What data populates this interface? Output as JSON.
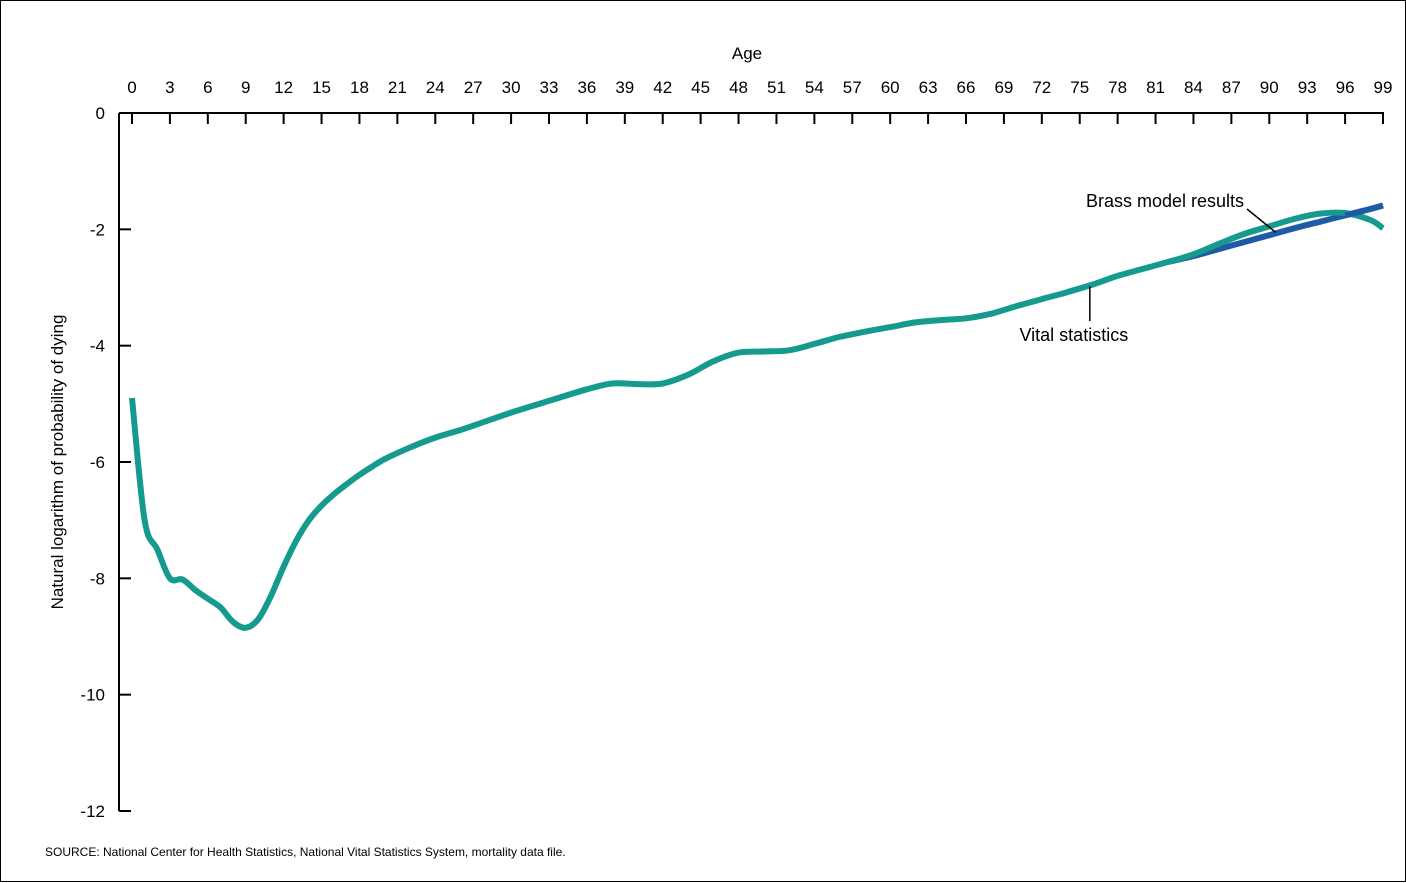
{
  "chart_data": {
    "type": "line",
    "xlabel": "Age",
    "ylabel": "Natural logarithm of probability of dying",
    "xlim": [
      0,
      99
    ],
    "ylim": [
      -12,
      0
    ],
    "x_ticks": [
      0,
      3,
      6,
      9,
      12,
      15,
      18,
      21,
      24,
      27,
      30,
      33,
      36,
      39,
      42,
      45,
      48,
      51,
      54,
      57,
      60,
      63,
      66,
      69,
      72,
      75,
      78,
      81,
      84,
      87,
      90,
      93,
      96,
      99
    ],
    "y_ticks": [
      0,
      -2,
      -4,
      -6,
      -8,
      -10,
      -12
    ],
    "x_axis_position": "top",
    "grid": false,
    "series": [
      {
        "name": "Vital statistics",
        "color": "#159a8e",
        "x": [
          0,
          1,
          2,
          3,
          4,
          5,
          6,
          7,
          8,
          9,
          10,
          11,
          12,
          13,
          14,
          15,
          16,
          17,
          18,
          19,
          20,
          22,
          24,
          26,
          28,
          30,
          33,
          36,
          38,
          40,
          42,
          44,
          46,
          48,
          50,
          52,
          54,
          56,
          58,
          60,
          62,
          64,
          66,
          68,
          70,
          72,
          74,
          76,
          78,
          80,
          82,
          84,
          86,
          88,
          90,
          92,
          94,
          96,
          98,
          99
        ],
        "y": [
          -4.9,
          -7.0,
          -7.5,
          -8.0,
          -8.02,
          -8.2,
          -8.35,
          -8.5,
          -8.75,
          -8.85,
          -8.7,
          -8.3,
          -7.8,
          -7.35,
          -7.0,
          -6.75,
          -6.55,
          -6.38,
          -6.22,
          -6.08,
          -5.95,
          -5.75,
          -5.58,
          -5.45,
          -5.3,
          -5.15,
          -4.95,
          -4.75,
          -4.65,
          -4.66,
          -4.65,
          -4.5,
          -4.27,
          -4.12,
          -4.1,
          -4.08,
          -3.97,
          -3.85,
          -3.76,
          -3.68,
          -3.6,
          -3.56,
          -3.53,
          -3.45,
          -3.32,
          -3.2,
          -3.08,
          -2.95,
          -2.8,
          -2.68,
          -2.56,
          -2.43,
          -2.25,
          -2.08,
          -1.95,
          -1.82,
          -1.73,
          -1.72,
          -1.84,
          -1.98
        ]
      },
      {
        "name": "Brass model results",
        "color": "#1f5aa6",
        "x": [
          82,
          84,
          86,
          88,
          90,
          92,
          94,
          96,
          98,
          99
        ],
        "y": [
          -2.56,
          -2.46,
          -2.34,
          -2.22,
          -2.1,
          -1.98,
          -1.87,
          -1.76,
          -1.65,
          -1.59
        ]
      }
    ],
    "annotations": [
      {
        "text": "Brass model results",
        "points_to": {
          "x": 90.5,
          "y": -2.05
        }
      },
      {
        "text": "Vital statistics",
        "points_to": {
          "x": 75.8,
          "y": -2.98
        }
      }
    ],
    "source": "SOURCE: National Center for Health Statistics, National Vital Statistics System, mortality data file."
  }
}
